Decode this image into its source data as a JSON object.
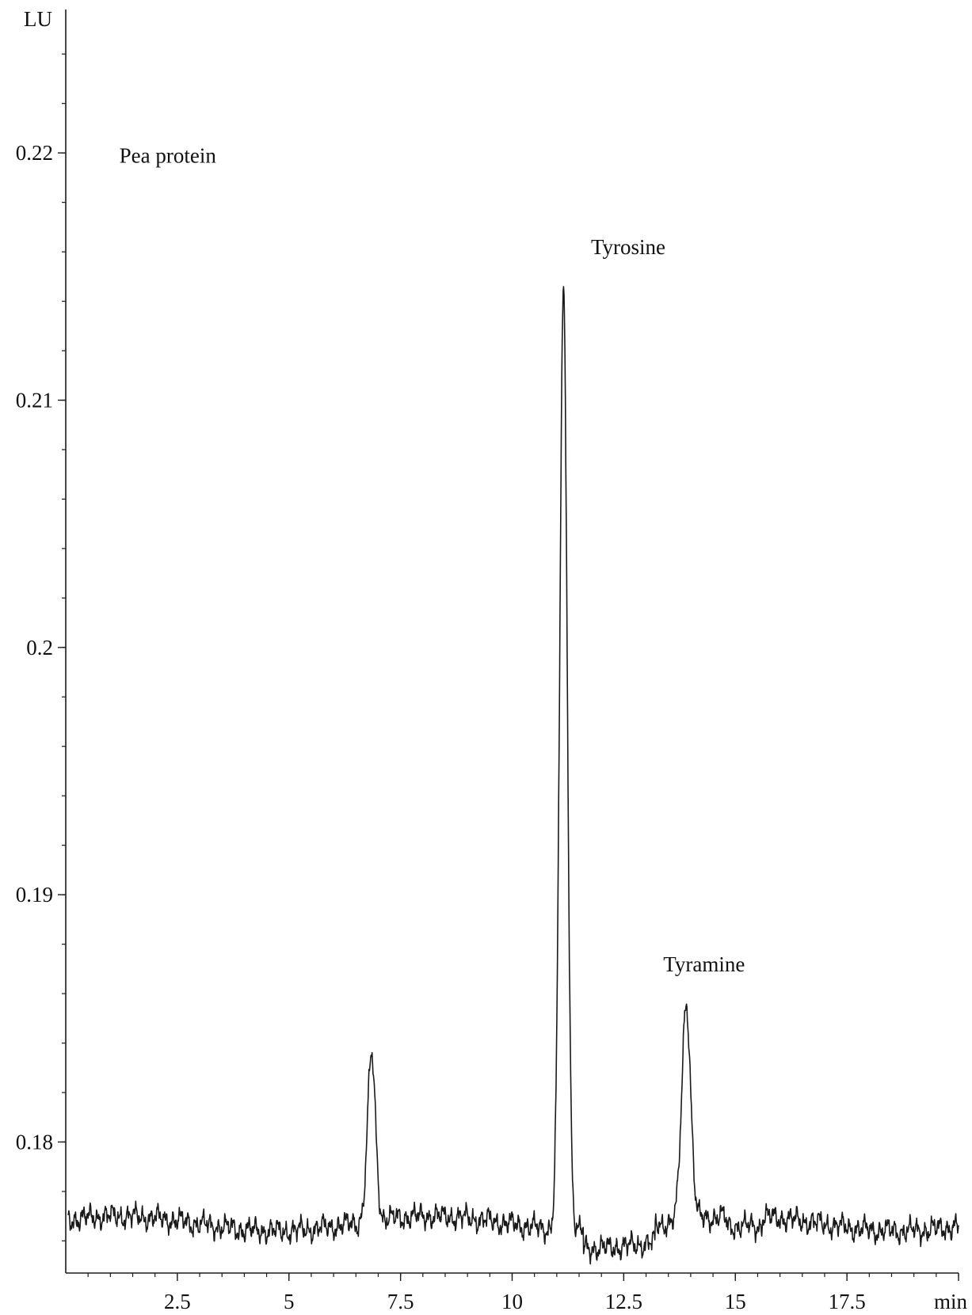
{
  "chart_data": {
    "type": "line",
    "title": "",
    "xlabel": "min",
    "ylabel": "LU",
    "xlim": [
      0,
      20
    ],
    "ylim": [
      0.1747,
      0.2258
    ],
    "x_ticks": [
      2.5,
      5,
      7.5,
      10,
      12.5,
      15,
      17.5
    ],
    "x_tick_labels": [
      "2.5",
      "5",
      "7.5",
      "10",
      "12.5",
      "15",
      "17.5"
    ],
    "x_minor_step": 0.5,
    "y_ticks": [
      0.18,
      0.19,
      0.2,
      0.21,
      0.22
    ],
    "y_tick_labels": [
      "0.18",
      "0.19",
      "0.2",
      "0.21",
      "0.22"
    ],
    "y_minor_step": 0.002,
    "grid": false,
    "line_color": "#1a1a1a",
    "baseline": 0.1767,
    "noise_amplitude": 0.00045,
    "series": [
      {
        "peaks": [
          {
            "label": "",
            "x": 6.85,
            "height": 0.1834
          },
          {
            "label": "Tyrosine",
            "x": 11.15,
            "height": 0.2146
          },
          {
            "label": "Tyramine",
            "x": 13.9,
            "height": 0.1855
          }
        ]
      }
    ],
    "annotations": [
      {
        "text": "Pea protein",
        "x": 1.2,
        "y": 0.2196
      },
      {
        "text": "Tyrosine",
        "x": 12.6,
        "y": 0.2159,
        "anchor": "middle"
      },
      {
        "text": "Tyramine",
        "x": 14.3,
        "y": 0.1869,
        "anchor": "middle"
      }
    ]
  }
}
